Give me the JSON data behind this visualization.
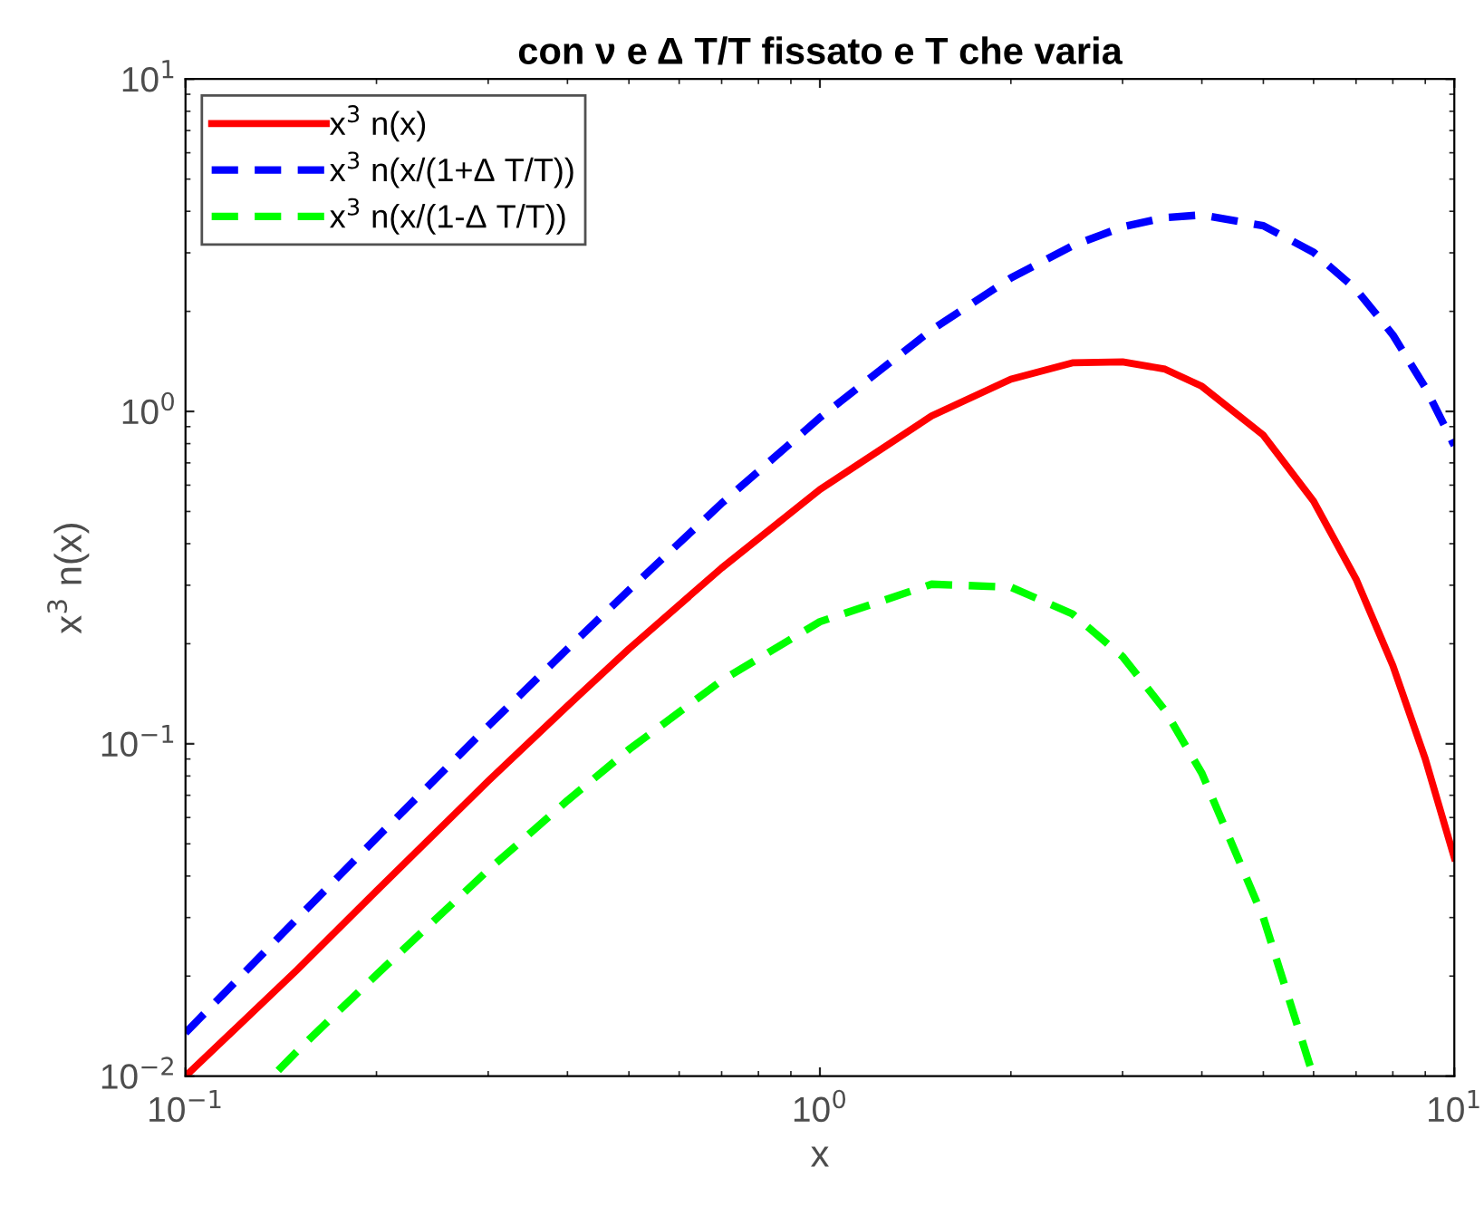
{
  "chart_data": {
    "type": "line",
    "title": "con ν e Δ T/T fissato e T che varia",
    "xlabel": "x",
    "ylabel": "x$^{3}$ n(x)",
    "log": "xy",
    "xlim": [
      0.1,
      10
    ],
    "ylim": [
      0.01,
      10
    ],
    "xticks": [
      {
        "value": 0.1,
        "label": "10$^{−1}$"
      },
      {
        "value": 1,
        "label": "10$^{0}$"
      },
      {
        "value": 10,
        "label": "10$^{1}$"
      }
    ],
    "yticks": [
      {
        "value": 0.01,
        "label": "10$^{−2}$"
      },
      {
        "value": 0.1,
        "label": "10$^{−1}$"
      },
      {
        "value": 1,
        "label": "10$^{0}$"
      },
      {
        "value": 10,
        "label": "10$^{1}$"
      }
    ],
    "grid": false,
    "legend": "top left",
    "marker": "none",
    "series": [
      {
        "name": "x$^{3}$ n(x)",
        "color": "#ff0000",
        "line_style": "solid",
        "x": [
          0.1,
          0.15,
          0.2,
          0.3,
          0.4,
          0.5,
          0.7,
          1,
          1.5,
          2,
          2.5,
          3,
          3.5,
          4,
          5,
          6,
          7,
          8,
          9,
          10
        ],
        "values": [
          0.01,
          0.0209,
          0.0361,
          0.0772,
          0.13,
          0.193,
          0.338,
          0.582,
          0.969,
          1.25,
          1.4,
          1.41,
          1.34,
          1.19,
          0.848,
          0.537,
          0.313,
          0.172,
          0.09,
          0.0454
        ]
      },
      {
        "name": "x$^{3}$ n(x/(1+Δ T/T))",
        "color": "#0000ff",
        "line_style": "dashed",
        "x": [
          0.1,
          0.15,
          0.2,
          0.3,
          0.4,
          0.5,
          0.7,
          1,
          1.5,
          2,
          2.5,
          3,
          3.5,
          4,
          5,
          6,
          7,
          8,
          9,
          10
        ],
        "values": [
          0.0135,
          0.0298,
          0.0521,
          0.113,
          0.193,
          0.29,
          0.529,
          0.958,
          1.76,
          2.52,
          3.15,
          3.59,
          3.83,
          3.9,
          3.62,
          3.01,
          2.33,
          1.7,
          1.18,
          0.79
        ]
      },
      {
        "name": "x$^{3}$ n(x/(1-Δ T/T))",
        "color": "#00ff00",
        "line_style": "dashed",
        "x": [
          0.14,
          0.15,
          0.2,
          0.3,
          0.4,
          0.5,
          0.7,
          1,
          1.5,
          2,
          2.5,
          3,
          3.5,
          4,
          5,
          5.9,
          6.0
        ],
        "values": [
          0.0104,
          0.0119,
          0.0202,
          0.0417,
          0.0675,
          0.0961,
          0.155,
          0.233,
          0.302,
          0.296,
          0.246,
          0.183,
          0.126,
          0.0815,
          0.03,
          0.011,
          0.01
        ]
      }
    ]
  }
}
